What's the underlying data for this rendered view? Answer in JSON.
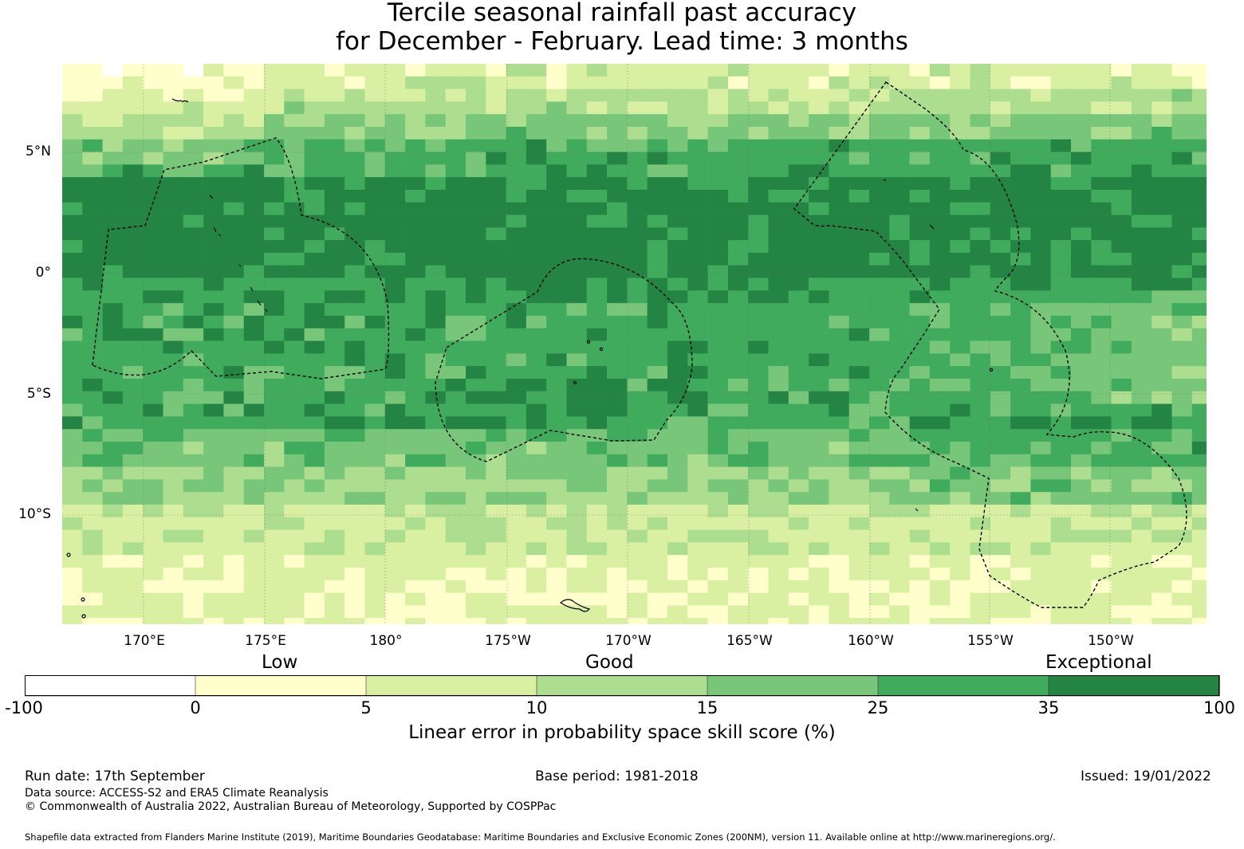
{
  "title": {
    "line1": "Tercile seasonal rainfall past accuracy",
    "line2": "for December - February. Lead time: 3 months"
  },
  "map": {
    "lat_labels": [
      "5°N",
      "0°",
      "5°S",
      "10°S"
    ],
    "lon_labels": [
      "170°E",
      "175°E",
      "180°",
      "175°W",
      "170°W",
      "165°W",
      "160°W",
      "155°W",
      "150°W"
    ],
    "skill_classes": [
      {
        "range": "-100 to 0",
        "color": "#ffffff"
      },
      {
        "range": "0 to 5",
        "color": "#ffffcc"
      },
      {
        "range": "5 to 10",
        "color": "#d9f0a3"
      },
      {
        "range": "10 to 15",
        "color": "#addd8e"
      },
      {
        "range": "15 to 25",
        "color": "#78c679"
      },
      {
        "range": "25 to 35",
        "color": "#41ab5d"
      },
      {
        "range": "35 to 100",
        "color": "#238443"
      }
    ]
  },
  "colorbar": {
    "category_labels": [
      "Low",
      "Good",
      "Exceptional"
    ],
    "ticks": [
      "-100",
      "0",
      "5",
      "10",
      "15",
      "25",
      "35",
      "100"
    ],
    "colors": [
      "#ffffff",
      "#ffffcc",
      "#d9f0a3",
      "#addd8e",
      "#78c679",
      "#41ab5d",
      "#238443"
    ],
    "label": "Linear error in probability space skill score (%)"
  },
  "footer": {
    "run_date": "Run date: 17th September",
    "base_period": "Base period: 1981-2018",
    "issued": "Issued: 19/01/2022",
    "data_source": "Data source: ACCESS-S2 and ERA5 Climate Reanalysis",
    "copyright": "© Commonwealth of Australia 2022, Australian Bureau of Meteorology, Supported by COSPPac",
    "shapefile": "Shapefile data extracted from Flanders Marine Institute (2019), Maritime Boundaries Geodatabase: Maritime Boundaries and Exclusive Economic Zones (200NM), version 11. Available online at http://www.marineregions.org/."
  }
}
